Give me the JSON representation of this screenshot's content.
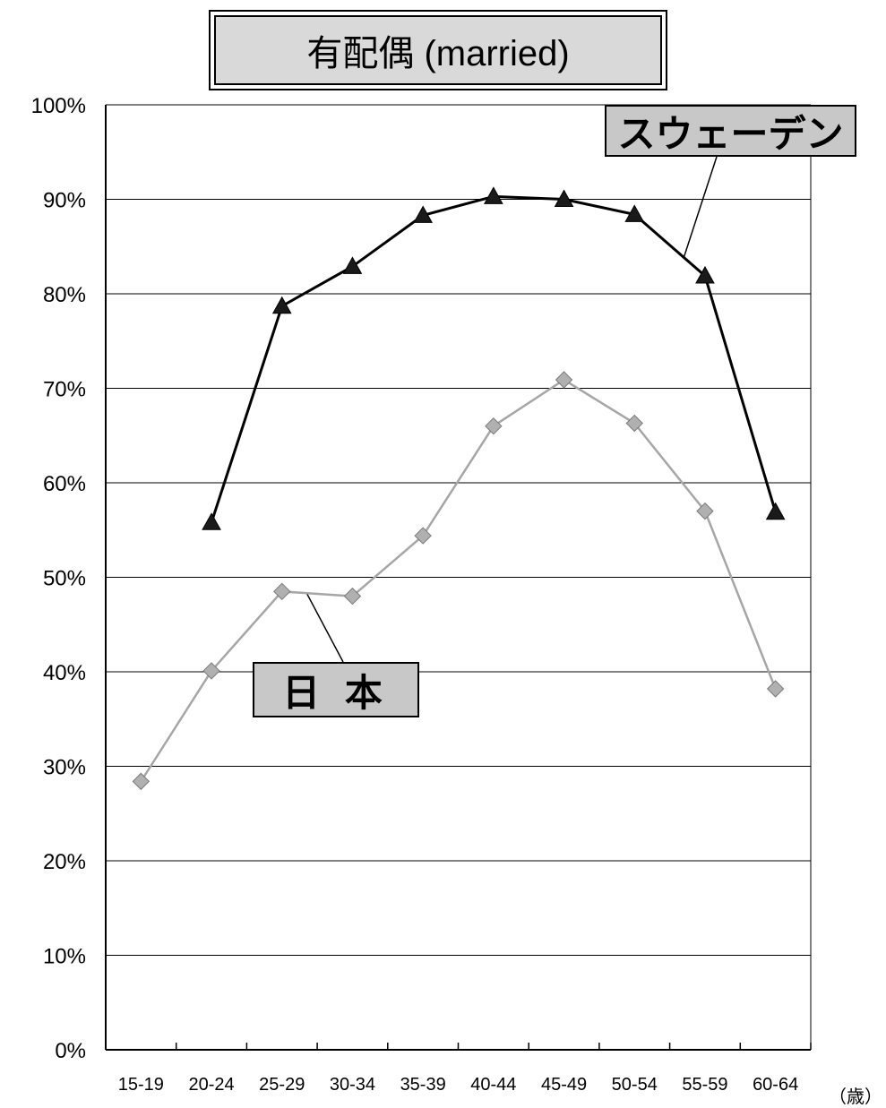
{
  "chart_data": {
    "type": "line",
    "title": "有配偶 (married)",
    "xlabel": "（歳）",
    "ylabel": "",
    "categories": [
      "15-19",
      "20-24",
      "25-29",
      "30-34",
      "35-39",
      "40-44",
      "45-49",
      "50-54",
      "55-59",
      "60-64"
    ],
    "ylim": [
      0,
      100
    ],
    "yticks": [
      "0%",
      "10%",
      "20%",
      "30%",
      "40%",
      "50%",
      "60%",
      "70%",
      "80%",
      "90%",
      "100%"
    ],
    "grid": true,
    "series": [
      {
        "name": "スウェーデン",
        "marker": "triangle",
        "color": "#000000",
        "values": [
          null,
          55.8,
          78.7,
          82.9,
          88.3,
          90.3,
          90.0,
          88.4,
          81.9,
          56.9
        ]
      },
      {
        "name": "日 本",
        "marker": "diamond",
        "color": "#a6a6a6",
        "values": [
          28.4,
          40.1,
          48.5,
          48.0,
          54.4,
          66.0,
          70.9,
          66.3,
          57.0,
          38.2
        ]
      }
    ]
  }
}
